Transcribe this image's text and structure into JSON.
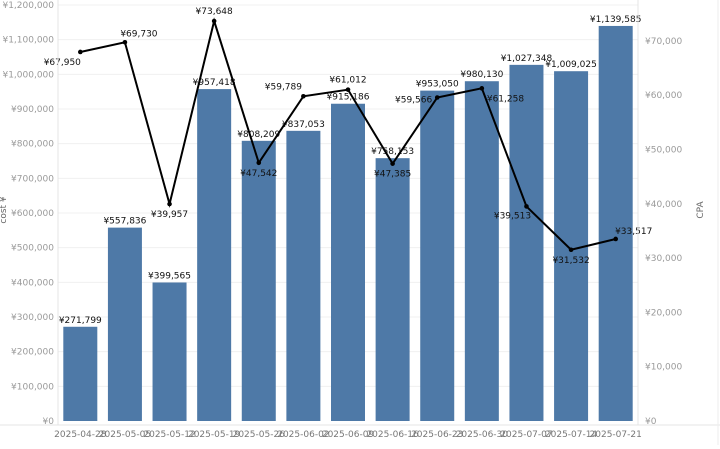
{
  "chart_data": {
    "type": "bar+line",
    "categories": [
      "2025-04-28",
      "2025-05-05",
      "2025-05-12",
      "2025-05-19",
      "2025-05-26",
      "2025-06-02",
      "2025-06-09",
      "2025-06-16",
      "2025-06-23",
      "2025-06-30",
      "2025-07-07",
      "2025-07-14",
      "2025-07-21"
    ],
    "series": [
      {
        "name": "cost",
        "type": "bar",
        "axis": "left",
        "color": "#4e79a7",
        "values": [
          271799,
          557836,
          399565,
          957418,
          808209,
          837053,
          915186,
          758153,
          953050,
          980130,
          1027348,
          1009025,
          1139585
        ],
        "labels": [
          "¥271,799",
          "¥557,836",
          "¥399,565",
          "¥957,418",
          "¥808,209",
          "¥837,053",
          "¥915,186",
          "¥758,153",
          "¥953,050",
          "¥980,130",
          "¥1,027,348",
          "¥1,009,025",
          "¥1,139,585"
        ]
      },
      {
        "name": "CPA",
        "type": "line",
        "axis": "right",
        "color": "#000000",
        "values": [
          67950,
          69730,
          39957,
          73648,
          47542,
          59789,
          61012,
          47385,
          59566,
          61258,
          39513,
          31532,
          33517
        ],
        "labels": [
          "¥67,950",
          "¥69,730",
          "¥39,957",
          "¥73,648",
          "¥47,542",
          "¥59,789",
          "¥61,012",
          "¥47,385",
          "¥59,566",
          "¥61,258",
          "¥39,513",
          "¥31,532",
          "¥33,517"
        ]
      }
    ],
    "ylabel": "cost ¥",
    "y2label": "CPA",
    "ylim": [
      0,
      1200000
    ],
    "y2lim": [
      0,
      76600
    ],
    "yticks": [
      "¥0",
      "¥100,000",
      "¥200,000",
      "¥300,000",
      "¥400,000",
      "¥500,000",
      "¥600,000",
      "¥700,000",
      "¥800,000",
      "¥900,000",
      "¥1,000,000",
      "¥1,100,000",
      "¥1,200,000"
    ],
    "ytick_values": [
      0,
      100000,
      200000,
      300000,
      400000,
      500000,
      600000,
      700000,
      800000,
      900000,
      1000000,
      1100000,
      1200000
    ],
    "y2ticks": [
      "¥0",
      "¥10,000",
      "¥20,000",
      "¥30,000",
      "¥40,000",
      "¥50,000",
      "¥60,000",
      "¥70,000"
    ],
    "y2tick_values": [
      0,
      10000,
      20000,
      30000,
      40000,
      50000,
      60000,
      70000
    ],
    "grid": true
  }
}
